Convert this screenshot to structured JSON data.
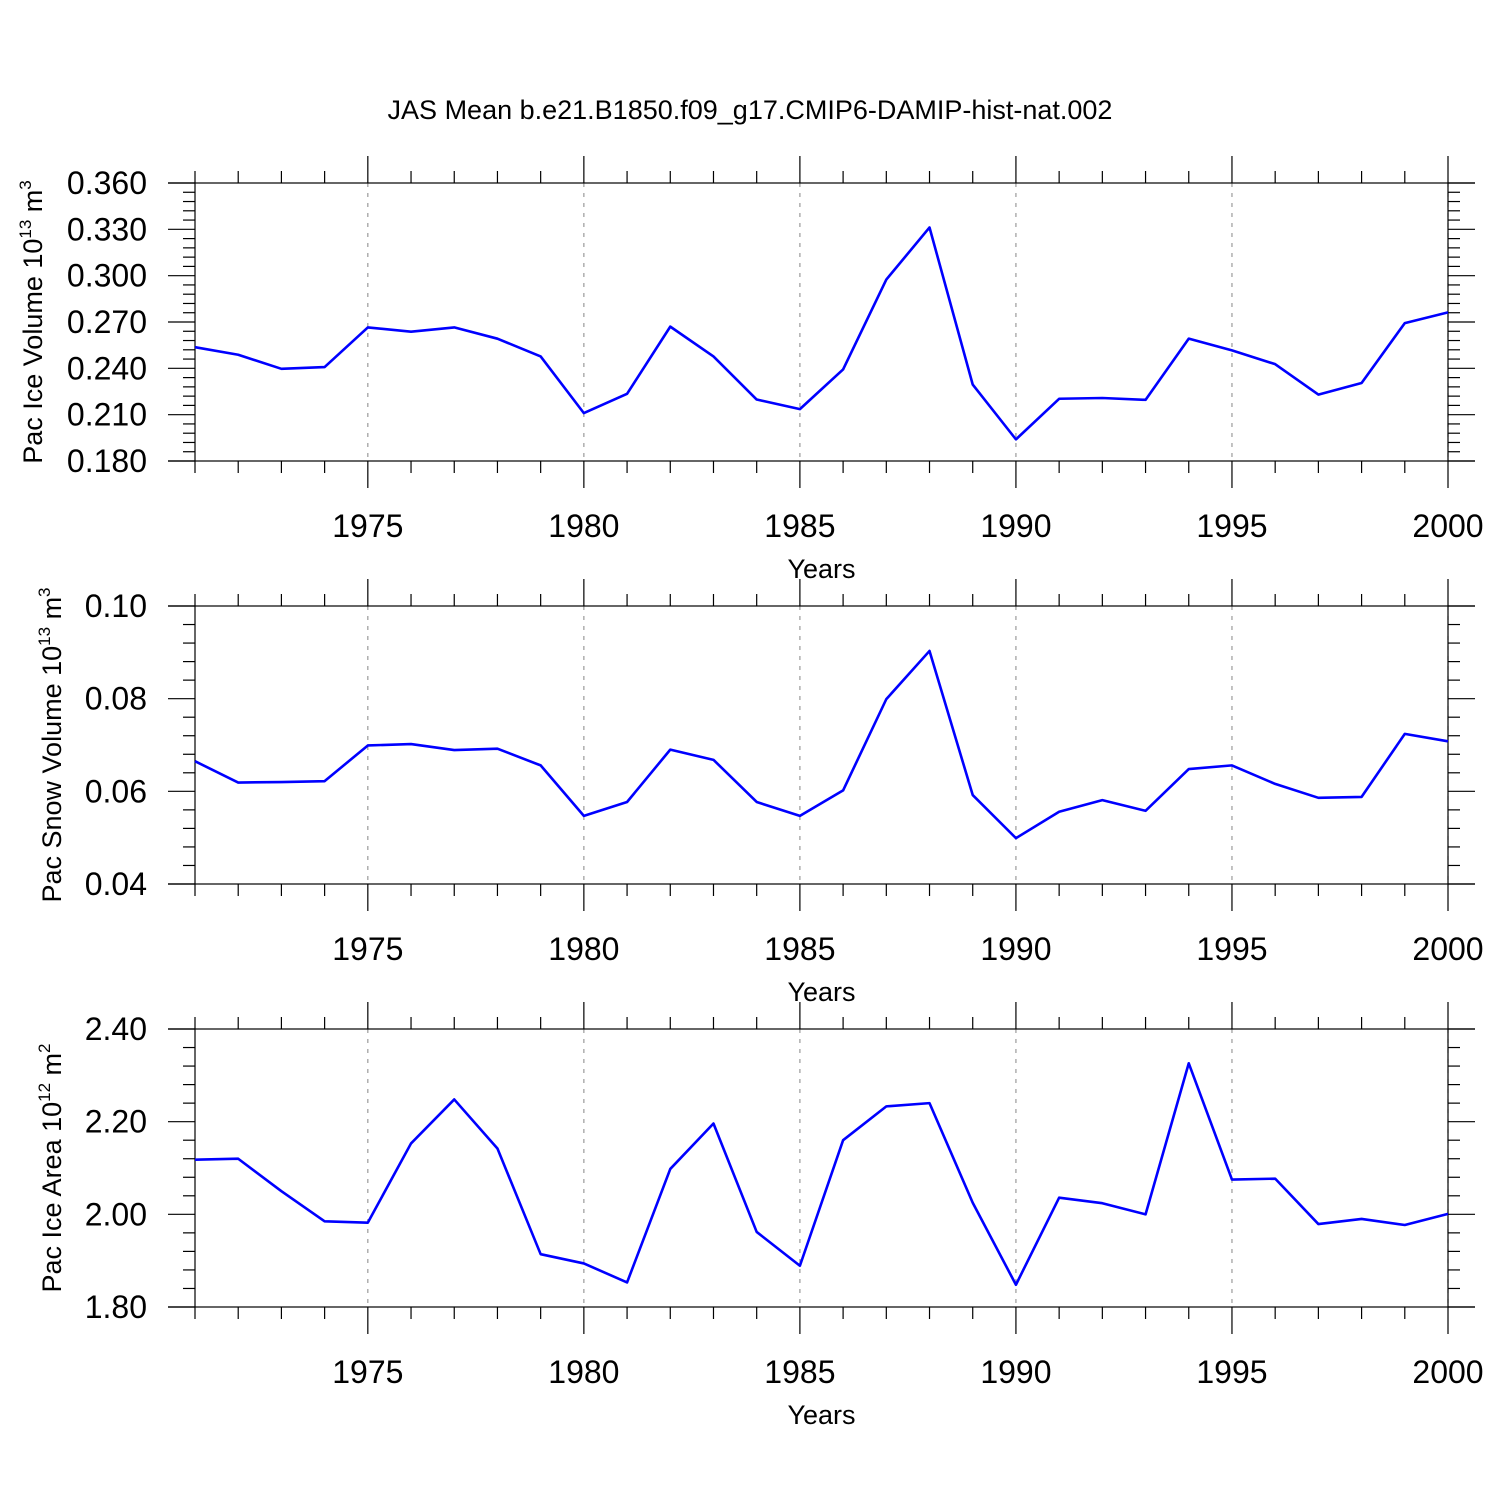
{
  "title": "JAS Mean b.e21.B1850.f09_g17.CMIP6-DAMIP-hist-nat.002",
  "colors": {
    "series": "#0000ff",
    "axis": "#000000",
    "grid": "#9a9a9a"
  },
  "chart_data": [
    {
      "type": "line",
      "ylabel": {
        "text": "Pac Ice Volume 10",
        "sup": "13",
        "text2": " m",
        "sup2": "3"
      },
      "xlabel": "Years",
      "xlim": [
        1971,
        2000
      ],
      "ylim": [
        0.18,
        0.36
      ],
      "xticks": [
        1975,
        1980,
        1985,
        1990,
        1995,
        2000
      ],
      "yticks": [
        "0.180",
        "0.210",
        "0.240",
        "0.270",
        "0.300",
        "0.330",
        "0.360"
      ],
      "grid": "x-dashed",
      "x": [
        1971,
        1972,
        1973,
        1974,
        1975,
        1976,
        1977,
        1978,
        1979,
        1980,
        1981,
        1982,
        1983,
        1984,
        1985,
        1986,
        1987,
        1988,
        1989,
        1990,
        1991,
        1992,
        1993,
        1994,
        1995,
        1996,
        1997,
        1998,
        1999,
        2000
      ],
      "values": [
        0.2537,
        0.2488,
        0.2397,
        0.2408,
        0.2665,
        0.2637,
        0.2665,
        0.2592,
        0.2477,
        0.211,
        0.2235,
        0.267,
        0.2477,
        0.2198,
        0.2136,
        0.2393,
        0.2975,
        0.3312,
        0.2295,
        0.194,
        0.2203,
        0.2208,
        0.2196,
        0.2592,
        0.2516,
        0.2427,
        0.223,
        0.2305,
        0.2693,
        0.2762
      ]
    },
    {
      "type": "line",
      "ylabel": {
        "text": "Pac Snow Volume 10",
        "sup": "13",
        "text2": " m",
        "sup2": "3"
      },
      "xlabel": "Years",
      "xlim": [
        1971,
        2000
      ],
      "ylim": [
        0.04,
        0.1
      ],
      "xticks": [
        1975,
        1980,
        1985,
        1990,
        1995,
        2000
      ],
      "yticks": [
        "0.04",
        "0.06",
        "0.08",
        "0.10"
      ],
      "grid": "x-dashed",
      "x": [
        1971,
        1972,
        1973,
        1974,
        1975,
        1976,
        1977,
        1978,
        1979,
        1980,
        1981,
        1982,
        1983,
        1984,
        1985,
        1986,
        1987,
        1988,
        1989,
        1990,
        1991,
        1992,
        1993,
        1994,
        1995,
        1996,
        1997,
        1998,
        1999,
        2000
      ],
      "values": [
        0.0665,
        0.0619,
        0.062,
        0.0622,
        0.0699,
        0.0702,
        0.0689,
        0.0692,
        0.0656,
        0.0547,
        0.0577,
        0.069,
        0.0668,
        0.0577,
        0.0547,
        0.0602,
        0.0799,
        0.0903,
        0.0592,
        0.0499,
        0.0556,
        0.0581,
        0.0558,
        0.0648,
        0.0656,
        0.0616,
        0.0586,
        0.0588,
        0.0724,
        0.0708
      ]
    },
    {
      "type": "line",
      "ylabel": {
        "text": "Pac Ice Area 10",
        "sup": "12",
        "text2": " m",
        "sup2": "2"
      },
      "xlabel": "Years",
      "xlim": [
        1971,
        2000
      ],
      "ylim": [
        1.8,
        2.4
      ],
      "xticks": [
        1975,
        1980,
        1985,
        1990,
        1995,
        2000
      ],
      "yticks": [
        "1.80",
        "2.00",
        "2.20",
        "2.40"
      ],
      "grid": "x-dashed",
      "x": [
        1971,
        1972,
        1973,
        1974,
        1975,
        1976,
        1977,
        1978,
        1979,
        1980,
        1981,
        1982,
        1983,
        1984,
        1985,
        1986,
        1987,
        1988,
        1989,
        1990,
        1991,
        1992,
        1993,
        1994,
        1995,
        1996,
        1997,
        1998,
        1999,
        2000
      ],
      "values": [
        2.118,
        2.12,
        2.05,
        1.985,
        1.982,
        2.153,
        2.248,
        2.142,
        1.914,
        1.894,
        1.853,
        2.098,
        2.196,
        1.962,
        1.889,
        2.16,
        2.233,
        2.24,
        2.025,
        1.848,
        2.036,
        2.024,
        2.0,
        2.326,
        2.075,
        2.077,
        1.979,
        1.99,
        1.977,
        2.001
      ]
    }
  ]
}
